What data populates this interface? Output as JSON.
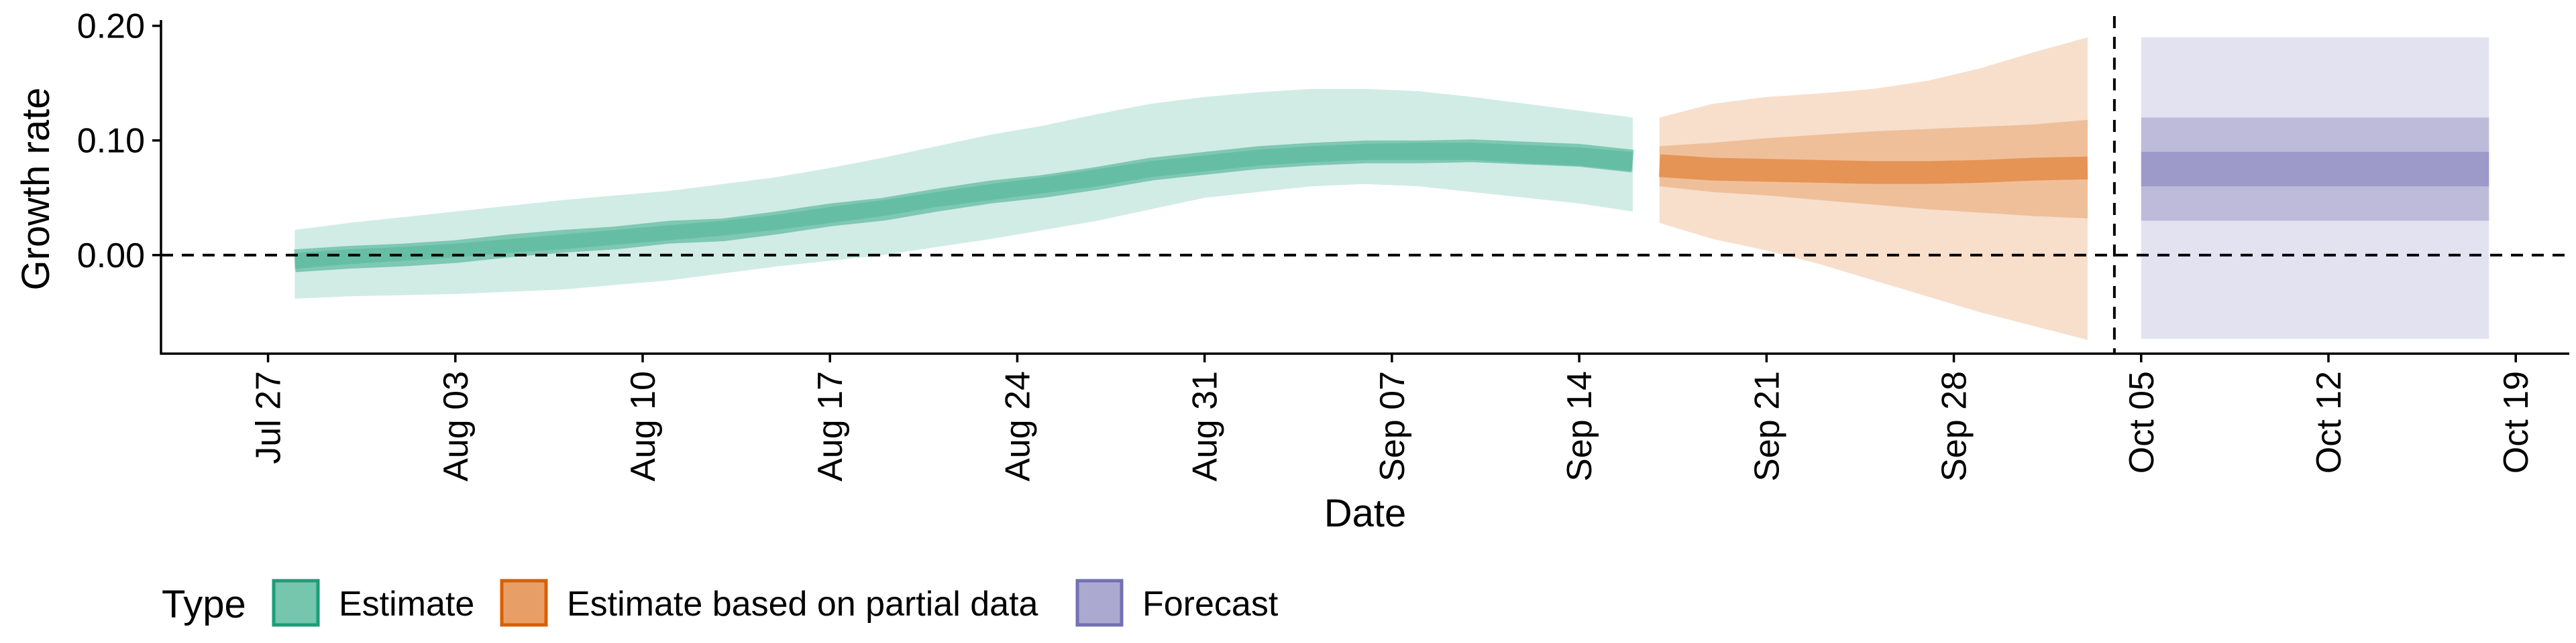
{
  "chart_data": {
    "type": "area",
    "title": "",
    "xlabel": "Date",
    "ylabel": "Growth rate",
    "x_ticks": [
      "Jul 27",
      "Aug 03",
      "Aug 10",
      "Aug 17",
      "Aug 24",
      "Aug 31",
      "Sep 07",
      "Sep 14",
      "Sep 21",
      "Sep 28",
      "Oct 05",
      "Oct 12",
      "Oct 19"
    ],
    "y_ticks": [
      "0.00",
      "0.10",
      "0.20"
    ],
    "y_tick_values": [
      0,
      0.1,
      0.2
    ],
    "xlim": [
      "2020-07-23",
      "2020-10-21"
    ],
    "ylim": [
      -0.086,
      0.205
    ],
    "reference_line_y": 0,
    "forecast_start_line": "2020-10-04",
    "grid": false,
    "legend": {
      "title": "Type",
      "position": "bottom-left",
      "items": [
        {
          "label": "Estimate",
          "color": "#1b9e77"
        },
        {
          "label": "Estimate based on partial data",
          "color": "#d95f02"
        },
        {
          "label": "Forecast",
          "color": "#7570b3"
        }
      ]
    },
    "series": [
      {
        "name": "Estimate",
        "color": "#1b9e77",
        "x": [
          "2020-07-28",
          "2020-07-30",
          "2020-08-01",
          "2020-08-03",
          "2020-08-05",
          "2020-08-07",
          "2020-08-09",
          "2020-08-11",
          "2020-08-13",
          "2020-08-15",
          "2020-08-17",
          "2020-08-19",
          "2020-08-21",
          "2020-08-23",
          "2020-08-25",
          "2020-08-27",
          "2020-08-29",
          "2020-08-31",
          "2020-09-02",
          "2020-09-04",
          "2020-09-06",
          "2020-09-08",
          "2020-09-10",
          "2020-09-12",
          "2020-09-14",
          "2020-09-16"
        ],
        "median": [
          -0.005,
          -0.002,
          0.0,
          0.003,
          0.008,
          0.012,
          0.015,
          0.02,
          0.022,
          0.028,
          0.035,
          0.04,
          0.048,
          0.055,
          0.06,
          0.067,
          0.075,
          0.08,
          0.085,
          0.088,
          0.09,
          0.09,
          0.091,
          0.089,
          0.087,
          0.082
        ],
        "lower_50": [
          -0.012,
          -0.008,
          -0.005,
          -0.002,
          0.002,
          0.005,
          0.009,
          0.013,
          0.017,
          0.022,
          0.028,
          0.034,
          0.042,
          0.048,
          0.054,
          0.06,
          0.068,
          0.073,
          0.078,
          0.081,
          0.083,
          0.083,
          0.083,
          0.08,
          0.078,
          0.073
        ],
        "upper_50": [
          0.002,
          0.005,
          0.007,
          0.01,
          0.014,
          0.018,
          0.022,
          0.026,
          0.03,
          0.035,
          0.042,
          0.048,
          0.055,
          0.062,
          0.068,
          0.075,
          0.082,
          0.087,
          0.092,
          0.095,
          0.097,
          0.098,
          0.098,
          0.096,
          0.094,
          0.09
        ],
        "lower_90": [
          -0.038,
          -0.036,
          -0.035,
          -0.034,
          -0.032,
          -0.03,
          -0.026,
          -0.022,
          -0.016,
          -0.01,
          -0.005,
          0.0,
          0.007,
          0.014,
          0.022,
          0.03,
          0.04,
          0.05,
          0.055,
          0.06,
          0.062,
          0.06,
          0.055,
          0.05,
          0.045,
          0.038
        ],
        "upper_90": [
          0.022,
          0.028,
          0.033,
          0.038,
          0.043,
          0.048,
          0.052,
          0.056,
          0.062,
          0.068,
          0.076,
          0.085,
          0.095,
          0.105,
          0.113,
          0.123,
          0.132,
          0.138,
          0.142,
          0.145,
          0.145,
          0.143,
          0.138,
          0.132,
          0.126,
          0.12
        ]
      },
      {
        "name": "Estimate based on partial data",
        "color": "#d95f02",
        "x": [
          "2020-09-17",
          "2020-09-19",
          "2020-09-21",
          "2020-09-23",
          "2020-09-25",
          "2020-09-27",
          "2020-09-29",
          "2020-10-01",
          "2020-10-03"
        ],
        "median": [
          0.078,
          0.075,
          0.074,
          0.073,
          0.072,
          0.072,
          0.073,
          0.075,
          0.076
        ],
        "lower_50": [
          0.06,
          0.055,
          0.052,
          0.048,
          0.044,
          0.04,
          0.037,
          0.034,
          0.032
        ],
        "upper_50": [
          0.095,
          0.098,
          0.102,
          0.105,
          0.108,
          0.11,
          0.112,
          0.114,
          0.118
        ],
        "lower_90": [
          0.028,
          0.014,
          0.004,
          -0.008,
          -0.022,
          -0.036,
          -0.05,
          -0.062,
          -0.074
        ],
        "upper_90": [
          0.12,
          0.132,
          0.138,
          0.141,
          0.145,
          0.152,
          0.163,
          0.177,
          0.19
        ]
      },
      {
        "name": "Forecast",
        "color": "#7570b3",
        "x": [
          "2020-10-05",
          "2020-10-18"
        ],
        "lower_30": [
          0.06,
          0.06
        ],
        "upper_30": [
          0.09,
          0.09
        ],
        "lower_60": [
          0.03,
          0.03
        ],
        "upper_60": [
          0.12,
          0.12
        ],
        "lower_90": [
          -0.073,
          -0.073
        ],
        "upper_90": [
          0.19,
          0.19
        ]
      }
    ]
  }
}
